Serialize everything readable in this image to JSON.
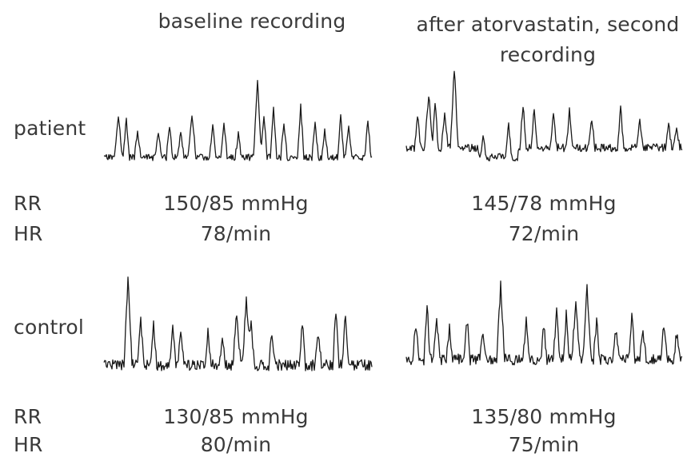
{
  "columns": {
    "left_title": "baseline recording",
    "right_title": "after atorvastatin, second recording"
  },
  "rows": [
    {
      "label": "patient",
      "rr_label": "RR",
      "hr_label": "HR",
      "baseline": {
        "rr": "150/85 mmHg",
        "hr": "78/min"
      },
      "after": {
        "rr": "145/78 mmHg",
        "hr": "72/min"
      }
    },
    {
      "label": "control",
      "rr_label": "RR",
      "hr_label": "HR",
      "baseline": {
        "rr": "130/85 mmHg",
        "hr": "80/min"
      },
      "after": {
        "rr": "135/80 mmHg",
        "hr": "75/min"
      }
    }
  ]
}
